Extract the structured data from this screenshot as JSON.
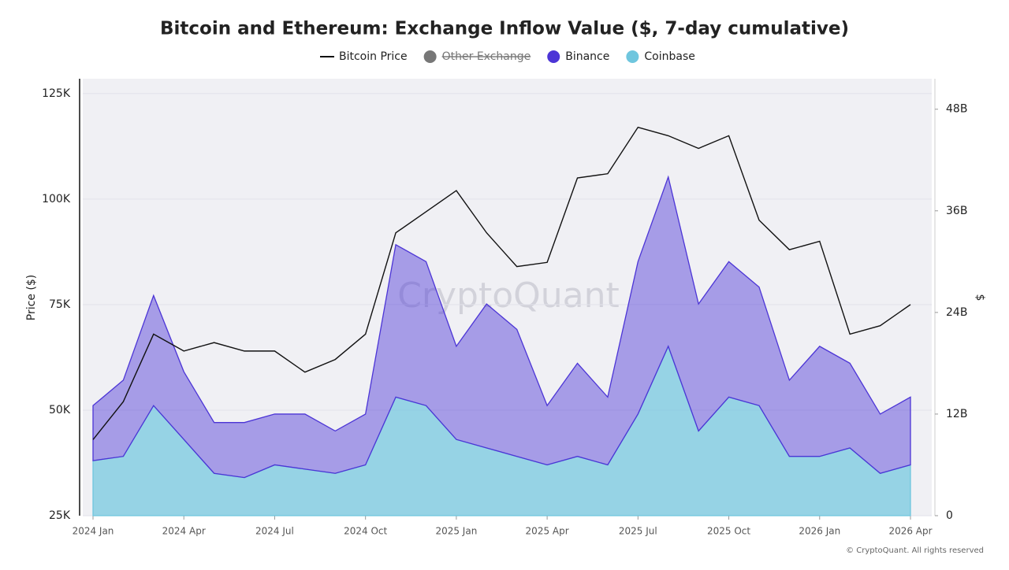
{
  "chart_data": {
    "type": "line-stacked-area",
    "title": "Bitcoin and Ethereum: Exchange Inflow Value ($, 7-day cumulative)",
    "ylabel": "Price ($)",
    "y2label": "$",
    "watermark": "CryptoQuant",
    "credit": "© CryptoQuant. All rights reserved",
    "x": [
      "2024-01",
      "2024-02",
      "2024-03",
      "2024-04",
      "2024-05",
      "2024-06",
      "2024-07",
      "2024-08",
      "2024-09",
      "2024-10",
      "2024-11",
      "2024-12",
      "2025-01",
      "2025-02",
      "2025-03",
      "2025-04",
      "2025-05",
      "2025-06",
      "2025-07",
      "2025-08",
      "2025-09",
      "2025-10",
      "2025-11",
      "2025-12",
      "2026-01",
      "2026-02",
      "2026-03",
      "2026-04"
    ],
    "xticks": [
      {
        "value": "2024-01",
        "label": "2024 Jan"
      },
      {
        "value": "2024-04",
        "label": "2024 Apr"
      },
      {
        "value": "2024-07",
        "label": "2024 Jul"
      },
      {
        "value": "2024-10",
        "label": "2024 Oct"
      },
      {
        "value": "2025-01",
        "label": "2025 Jan"
      },
      {
        "value": "2025-04",
        "label": "2025 Apr"
      },
      {
        "value": "2025-07",
        "label": "2025 Jul"
      },
      {
        "value": "2025-10",
        "label": "2025 Oct"
      },
      {
        "value": "2026-01",
        "label": "2026 Jan"
      },
      {
        "value": "2026-04",
        "label": "2026 Apr"
      }
    ],
    "ylim": [
      25000,
      128500
    ],
    "yticks": [
      {
        "value": 25000,
        "label": "25K"
      },
      {
        "value": 50000,
        "label": "50K"
      },
      {
        "value": 75000,
        "label": "75K"
      },
      {
        "value": 100000,
        "label": "100K"
      },
      {
        "value": 125000,
        "label": "125K"
      }
    ],
    "y2lim": [
      0,
      51600000000
    ],
    "y2ticks": [
      0,
      {
        "value": 12000000000,
        "label": "12B"
      },
      {
        "value": 24000000000,
        "label": "24B"
      },
      {
        "value": 36000000000,
        "label": "36B"
      },
      {
        "value": 48000000000,
        "label": "48B"
      }
    ],
    "series": [
      {
        "name": "Bitcoin Price",
        "color": "#111111",
        "kind": "line",
        "values": [
          43000,
          52000,
          68000,
          64000,
          66000,
          64000,
          64000,
          59000,
          62000,
          68000,
          92000,
          97000,
          102000,
          92000,
          84000,
          85000,
          105000,
          106000,
          117000,
          115000,
          112000,
          115000,
          95000,
          88000,
          90000,
          68000,
          70000,
          75000
        ]
      },
      {
        "name": "Other Exchange",
        "color": "#777777",
        "kind": "area",
        "axis": "y2",
        "hidden": true
      },
      {
        "name": "Coinbase",
        "color": "#6fc6de",
        "kind": "area",
        "axis": "y2",
        "values": [
          6500000000,
          7000000000,
          13000000000,
          9000000000,
          5000000000,
          4500000000,
          6000000000,
          5500000000,
          5000000000,
          6000000000,
          14000000000,
          13000000000,
          9000000000,
          8000000000,
          7000000000,
          6000000000,
          7000000000,
          6000000000,
          12000000000,
          20000000000,
          10000000000,
          14000000000,
          13000000000,
          7000000000,
          7000000000,
          8000000000,
          5000000000,
          6000000000
        ]
      },
      {
        "name": "Binance",
        "color": "#4c35d6",
        "kind": "area",
        "axis": "y2",
        "values": [
          6500000000,
          9000000000,
          13000000000,
          8000000000,
          6000000000,
          6500000000,
          6000000000,
          6500000000,
          5000000000,
          6000000000,
          18000000000,
          17000000000,
          11000000000,
          17000000000,
          15000000000,
          7000000000,
          11000000000,
          8000000000,
          18000000000,
          20000000000,
          15000000000,
          16000000000,
          14000000000,
          9000000000,
          13000000000,
          10000000000,
          7000000000,
          8000000000
        ]
      }
    ],
    "legend_order": [
      0,
      1,
      3,
      2
    ],
    "legend": "top"
  }
}
